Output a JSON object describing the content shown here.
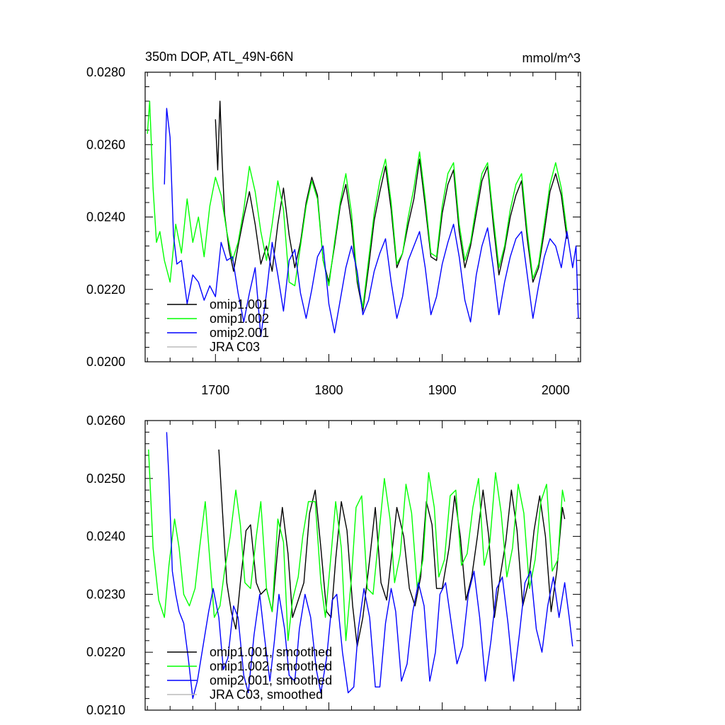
{
  "chart_data": [
    {
      "type": "line",
      "title": "350m DOP, ATL_49N-66N",
      "units": "mmol/m^3",
      "xlim": [
        1638,
        2022
      ],
      "ylim": [
        0.02,
        0.028
      ],
      "xticks": [
        "1700",
        "1800",
        "1900",
        "2000"
      ],
      "yticks": [
        "0.0200",
        "0.0220",
        "0.0240",
        "0.0260",
        "0.0280"
      ],
      "legend": [
        "omip1.001",
        "omip1.002",
        "omip2.001",
        "JRA C03"
      ],
      "series": [
        {
          "name": "omip1.001",
          "color": "#000000",
          "x": [
            1700,
            1702,
            1704,
            1706,
            1708,
            1712,
            1716,
            1720,
            1725,
            1730,
            1735,
            1740,
            1745,
            1750,
            1755,
            1760,
            1765,
            1770,
            1775,
            1780,
            1785,
            1790,
            1795,
            1800,
            1805,
            1810,
            1815,
            1820,
            1825,
            1830,
            1835,
            1840,
            1845,
            1850,
            1855,
            1860,
            1865,
            1870,
            1875,
            1880,
            1885,
            1890,
            1895,
            1900,
            1905,
            1910,
            1915,
            1920,
            1925,
            1930,
            1935,
            1940,
            1945,
            1950,
            1955,
            1960,
            1965,
            1970,
            1975,
            1980,
            1985,
            1990,
            1995,
            2000,
            2005,
            2010
          ],
          "y": [
            0.0267,
            0.0253,
            0.0272,
            0.0255,
            0.0241,
            0.0231,
            0.0225,
            0.0232,
            0.024,
            0.0247,
            0.0238,
            0.0227,
            0.0232,
            0.0225,
            0.0238,
            0.0248,
            0.0235,
            0.0226,
            0.0233,
            0.0244,
            0.0251,
            0.0246,
            0.0228,
            0.0222,
            0.0232,
            0.0243,
            0.0249,
            0.0238,
            0.0222,
            0.0214,
            0.0226,
            0.0239,
            0.0247,
            0.0254,
            0.0242,
            0.0226,
            0.023,
            0.0238,
            0.0245,
            0.0256,
            0.0243,
            0.0229,
            0.0228,
            0.0241,
            0.0249,
            0.0253,
            0.0236,
            0.0226,
            0.0232,
            0.0241,
            0.025,
            0.0254,
            0.0238,
            0.0224,
            0.0231,
            0.024,
            0.0246,
            0.025,
            0.0234,
            0.0222,
            0.0226,
            0.0236,
            0.0247,
            0.0252,
            0.0246,
            0.0234
          ]
        },
        {
          "name": "omip1.002",
          "color": "#00ff00",
          "x": [
            1640,
            1642,
            1645,
            1648,
            1651,
            1655,
            1660,
            1665,
            1670,
            1675,
            1680,
            1685,
            1690,
            1695,
            1700,
            1705,
            1710,
            1715,
            1720,
            1725,
            1730,
            1735,
            1740,
            1745,
            1750,
            1755,
            1760,
            1765,
            1770,
            1775,
            1780,
            1785,
            1790,
            1795,
            1800,
            1805,
            1810,
            1815,
            1820,
            1825,
            1830,
            1835,
            1840,
            1845,
            1850,
            1855,
            1860,
            1865,
            1870,
            1875,
            1880,
            1885,
            1890,
            1895,
            1900,
            1905,
            1910,
            1915,
            1920,
            1925,
            1930,
            1935,
            1940,
            1945,
            1950,
            1955,
            1960,
            1965,
            1970,
            1975,
            1980,
            1985,
            1990,
            1995,
            2000,
            2005,
            2010
          ],
          "y": [
            0.0263,
            0.0272,
            0.0248,
            0.0233,
            0.0236,
            0.0228,
            0.0222,
            0.0238,
            0.023,
            0.0245,
            0.0233,
            0.024,
            0.0229,
            0.0243,
            0.0251,
            0.0246,
            0.0236,
            0.0228,
            0.0233,
            0.0242,
            0.0254,
            0.0247,
            0.0236,
            0.0228,
            0.0238,
            0.025,
            0.0242,
            0.0222,
            0.0221,
            0.0232,
            0.0243,
            0.025,
            0.0245,
            0.0228,
            0.0221,
            0.0233,
            0.0244,
            0.0252,
            0.0241,
            0.0223,
            0.0215,
            0.0228,
            0.0241,
            0.025,
            0.0256,
            0.0244,
            0.0227,
            0.023,
            0.024,
            0.0248,
            0.0258,
            0.0245,
            0.023,
            0.0229,
            0.0243,
            0.0252,
            0.0255,
            0.0238,
            0.0228,
            0.0233,
            0.0243,
            0.0252,
            0.0255,
            0.024,
            0.0226,
            0.0232,
            0.0242,
            0.0249,
            0.0252,
            0.0236,
            0.0223,
            0.0227,
            0.0238,
            0.0249,
            0.0255,
            0.0248,
            0.0236
          ]
        },
        {
          "name": "omip2.001",
          "color": "#0000ff",
          "x": [
            1655,
            1657,
            1660,
            1663,
            1666,
            1670,
            1675,
            1680,
            1685,
            1690,
            1695,
            1700,
            1705,
            1710,
            1715,
            1720,
            1725,
            1730,
            1735,
            1740,
            1745,
            1750,
            1755,
            1760,
            1765,
            1770,
            1775,
            1780,
            1785,
            1790,
            1795,
            1800,
            1805,
            1810,
            1815,
            1820,
            1825,
            1830,
            1835,
            1840,
            1845,
            1850,
            1855,
            1860,
            1865,
            1870,
            1875,
            1880,
            1885,
            1890,
            1895,
            1900,
            1905,
            1910,
            1915,
            1920,
            1925,
            1930,
            1935,
            1940,
            1945,
            1950,
            1955,
            1960,
            1965,
            1970,
            1975,
            1980,
            1985,
            1990,
            1995,
            2000,
            2005,
            2010,
            2015,
            2018,
            2020
          ],
          "y": [
            0.0249,
            0.027,
            0.0262,
            0.0235,
            0.0227,
            0.0228,
            0.0216,
            0.0224,
            0.0222,
            0.0217,
            0.0221,
            0.0218,
            0.0233,
            0.0228,
            0.0229,
            0.0219,
            0.0211,
            0.0219,
            0.0226,
            0.0207,
            0.0219,
            0.0233,
            0.0224,
            0.0214,
            0.0228,
            0.0231,
            0.0219,
            0.0212,
            0.022,
            0.0229,
            0.0232,
            0.0216,
            0.0208,
            0.0217,
            0.0226,
            0.0232,
            0.0225,
            0.0213,
            0.0217,
            0.0225,
            0.023,
            0.0234,
            0.0222,
            0.0212,
            0.0218,
            0.0228,
            0.0232,
            0.0236,
            0.0226,
            0.0213,
            0.0218,
            0.0227,
            0.0233,
            0.0238,
            0.0229,
            0.0217,
            0.0211,
            0.0224,
            0.0232,
            0.0237,
            0.0226,
            0.0213,
            0.0222,
            0.0229,
            0.0234,
            0.0236,
            0.0224,
            0.0212,
            0.0221,
            0.0229,
            0.0234,
            0.0232,
            0.0226,
            0.0236,
            0.0226,
            0.0232,
            0.0212
          ]
        },
        {
          "name": "JRA C03",
          "color": "#bbbbbb",
          "x": [],
          "y": []
        }
      ]
    },
    {
      "type": "line",
      "title": "",
      "xlim": [
        1638,
        2022
      ],
      "ylim": [
        0.021,
        0.026
      ],
      "xticks": [],
      "yticks": [
        "0.0210",
        "0.0220",
        "0.0230",
        "0.0240",
        "0.0250",
        "0.0260"
      ],
      "legend": [
        "omip1.001, smoothed",
        "omip1.002, smoothed",
        "omip2.001, smoothed",
        "JRA C03, smoothed"
      ],
      "series": [
        {
          "name": "omip1.001, smoothed",
          "color": "#000000",
          "x": [
            1703,
            1706,
            1710,
            1714,
            1718,
            1722,
            1727,
            1731,
            1736,
            1740,
            1745,
            1750,
            1755,
            1759,
            1764,
            1768,
            1773,
            1778,
            1783,
            1788,
            1793,
            1798,
            1802,
            1806,
            1811,
            1816,
            1821,
            1825,
            1830,
            1836,
            1841,
            1846,
            1851,
            1855,
            1860,
            1866,
            1871,
            1876,
            1881,
            1886,
            1891,
            1895,
            1900,
            1906,
            1911,
            1916,
            1921,
            1926,
            1931,
            1936,
            1941,
            1946,
            1951,
            1956,
            1961,
            1966,
            1971,
            1976,
            1981,
            1986,
            1991,
            1996,
            2001,
            2006,
            2008
          ],
          "y": [
            0.0255,
            0.0245,
            0.0232,
            0.0227,
            0.0224,
            0.0232,
            0.0241,
            0.0242,
            0.0232,
            0.023,
            0.0231,
            0.0227,
            0.0238,
            0.0245,
            0.0237,
            0.0226,
            0.0229,
            0.0232,
            0.0244,
            0.0248,
            0.0238,
            0.0227,
            0.0226,
            0.0236,
            0.0246,
            0.0241,
            0.0228,
            0.0221,
            0.0226,
            0.0236,
            0.0245,
            0.0232,
            0.0229,
            0.0236,
            0.0245,
            0.024,
            0.0231,
            0.0228,
            0.0233,
            0.0246,
            0.0242,
            0.0231,
            0.0231,
            0.0238,
            0.0247,
            0.024,
            0.0229,
            0.0233,
            0.024,
            0.0248,
            0.024,
            0.0226,
            0.0233,
            0.0239,
            0.0248,
            0.0241,
            0.0228,
            0.0232,
            0.0241,
            0.0247,
            0.024,
            0.0227,
            0.0234,
            0.0245,
            0.0243
          ]
        },
        {
          "name": "omip1.002, smoothed",
          "color": "#00ff00",
          "x": [
            1641,
            1645,
            1650,
            1655,
            1659,
            1664,
            1668,
            1672,
            1677,
            1682,
            1686,
            1691,
            1695,
            1699,
            1704,
            1708,
            1713,
            1718,
            1722,
            1726,
            1731,
            1736,
            1740,
            1745,
            1750,
            1755,
            1760,
            1764,
            1768,
            1773,
            1777,
            1782,
            1788,
            1793,
            1797,
            1802,
            1806,
            1811,
            1815,
            1820,
            1824,
            1829,
            1834,
            1839,
            1844,
            1849,
            1854,
            1858,
            1863,
            1868,
            1873,
            1878,
            1883,
            1888,
            1893,
            1897,
            1902,
            1907,
            1912,
            1917,
            1922,
            1927,
            1932,
            1937,
            1942,
            1947,
            1952,
            1957,
            1962,
            1967,
            1972,
            1977,
            1982,
            1987,
            1992,
            1997,
            2002,
            2006,
            2008
          ],
          "y": [
            0.0255,
            0.0238,
            0.0229,
            0.0226,
            0.0235,
            0.0243,
            0.0238,
            0.023,
            0.0228,
            0.0231,
            0.0238,
            0.0246,
            0.0236,
            0.0226,
            0.0228,
            0.0234,
            0.024,
            0.0248,
            0.0242,
            0.0232,
            0.0231,
            0.024,
            0.0246,
            0.0231,
            0.0227,
            0.0243,
            0.0239,
            0.0222,
            0.0229,
            0.0233,
            0.024,
            0.0246,
            0.0246,
            0.0232,
            0.0226,
            0.0237,
            0.0246,
            0.0238,
            0.0222,
            0.0233,
            0.0245,
            0.0247,
            0.0231,
            0.023,
            0.024,
            0.025,
            0.0243,
            0.0232,
            0.0237,
            0.0249,
            0.0244,
            0.0231,
            0.0236,
            0.0251,
            0.0245,
            0.0233,
            0.0236,
            0.0247,
            0.0248,
            0.0235,
            0.0237,
            0.0245,
            0.025,
            0.0235,
            0.0239,
            0.0251,
            0.0244,
            0.0233,
            0.0238,
            0.0249,
            0.0244,
            0.0231,
            0.0236,
            0.0246,
            0.0249,
            0.0234,
            0.0236,
            0.0248,
            0.0246
          ]
        },
        {
          "name": "omip2.001, smoothed",
          "color": "#0000ff",
          "x": [
            1657,
            1659,
            1662,
            1665,
            1668,
            1672,
            1676,
            1680,
            1684,
            1689,
            1694,
            1698,
            1703,
            1707,
            1711,
            1716,
            1720,
            1725,
            1729,
            1734,
            1739,
            1743,
            1748,
            1752,
            1756,
            1761,
            1765,
            1770,
            1774,
            1779,
            1784,
            1789,
            1793,
            1798,
            1803,
            1807,
            1812,
            1817,
            1822,
            1826,
            1831,
            1836,
            1841,
            1845,
            1850,
            1855,
            1859,
            1864,
            1869,
            1874,
            1879,
            1884,
            1889,
            1894,
            1898,
            1903,
            1908,
            1913,
            1918,
            1923,
            1928,
            1933,
            1938,
            1943,
            1948,
            1953,
            1958,
            1963,
            1968,
            1973,
            1978,
            1983,
            1988,
            1993,
            1998,
            2003,
            2008,
            2012,
            2015
          ],
          "y": [
            0.0258,
            0.025,
            0.0234,
            0.023,
            0.0227,
            0.0225,
            0.0219,
            0.0212,
            0.0215,
            0.0221,
            0.0227,
            0.0231,
            0.0226,
            0.0217,
            0.0219,
            0.0228,
            0.0226,
            0.0216,
            0.0213,
            0.0223,
            0.023,
            0.0223,
            0.0215,
            0.0222,
            0.023,
            0.0224,
            0.0216,
            0.0215,
            0.0224,
            0.023,
            0.0226,
            0.0217,
            0.0213,
            0.0219,
            0.0229,
            0.023,
            0.022,
            0.0213,
            0.0214,
            0.0224,
            0.0231,
            0.0226,
            0.0214,
            0.0214,
            0.0225,
            0.0231,
            0.0227,
            0.0215,
            0.0218,
            0.0227,
            0.0232,
            0.0228,
            0.0215,
            0.022,
            0.023,
            0.0232,
            0.0225,
            0.0218,
            0.0221,
            0.023,
            0.0234,
            0.0226,
            0.0215,
            0.0222,
            0.0231,
            0.0233,
            0.0225,
            0.0215,
            0.0223,
            0.0232,
            0.0234,
            0.0224,
            0.022,
            0.0228,
            0.0233,
            0.0226,
            0.0232,
            0.0226,
            0.0221
          ]
        },
        {
          "name": "JRA C03, smoothed",
          "color": "#bbbbbb",
          "x": [],
          "y": []
        }
      ]
    }
  ]
}
